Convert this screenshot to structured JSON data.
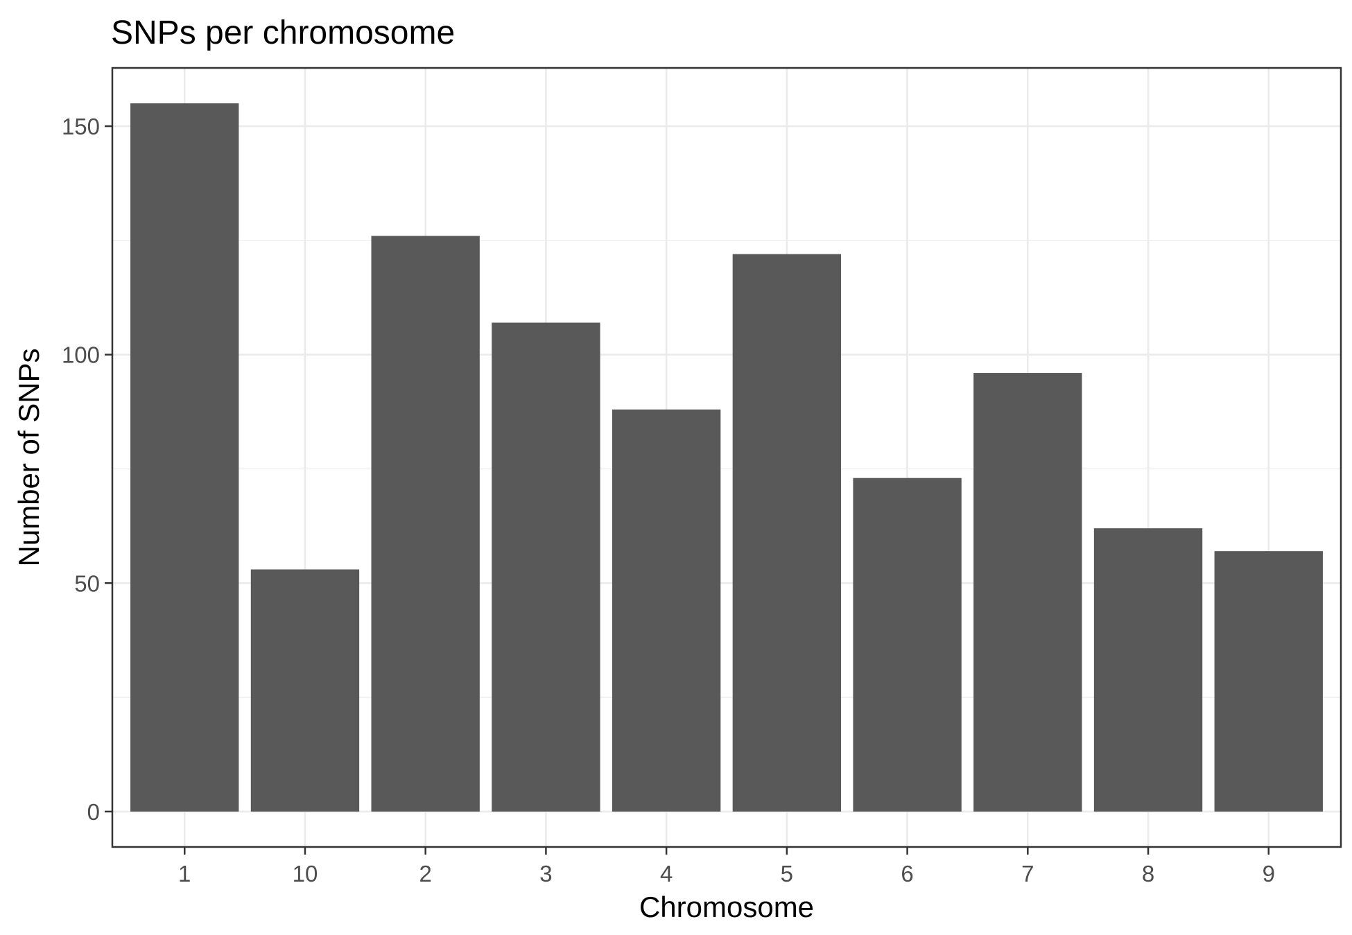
{
  "chart_data": {
    "type": "bar",
    "title": "SNPs per chromosome",
    "xlabel": "Chromosome",
    "ylabel": "Number of SNPs",
    "categories": [
      "1",
      "10",
      "2",
      "3",
      "4",
      "5",
      "6",
      "7",
      "8",
      "9"
    ],
    "values": [
      155,
      53,
      126,
      107,
      88,
      122,
      73,
      96,
      62,
      57
    ],
    "ylim": [
      -7.75,
      162.75
    ],
    "yticks": [
      0,
      50,
      100,
      150
    ],
    "ytick_labels": [
      "0",
      "50",
      "100",
      "150"
    ],
    "y_minor_ticks": [
      25,
      75,
      125
    ],
    "grid": true,
    "theme": "black-and-white",
    "bar_color": "#595959",
    "grid_color": "#ebebeb",
    "panel_border_color": "#333333"
  }
}
